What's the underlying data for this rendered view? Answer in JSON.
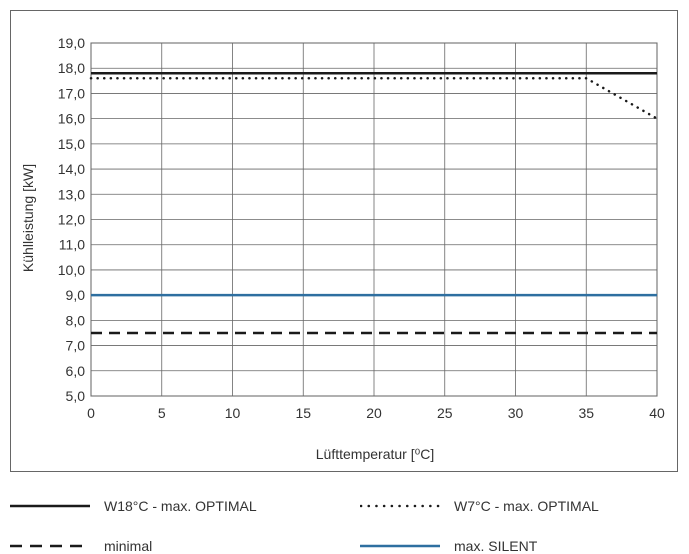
{
  "chart_data": {
    "type": "line",
    "xlabel": "Lüfttemperatur [⁰C]",
    "ylabel": "Kühlleistung [kW]",
    "xlim": [
      0,
      40
    ],
    "ylim": [
      5.0,
      19.0
    ],
    "x_ticks": [
      0,
      5,
      10,
      15,
      20,
      25,
      30,
      35,
      40
    ],
    "x_tick_labels": [
      "0",
      "5",
      "10",
      "15",
      "20",
      "25",
      "30",
      "35",
      "40"
    ],
    "y_ticks": [
      5,
      6,
      7,
      8,
      9,
      10,
      11,
      12,
      13,
      14,
      15,
      16,
      17,
      18,
      19
    ],
    "y_tick_labels": [
      "5,0",
      "6,0",
      "7,0",
      "8,0",
      "9,0",
      "10,0",
      "11,0",
      "12,0",
      "13,0",
      "14,0",
      "15,0",
      "16,0",
      "17,0",
      "18,0",
      "19,0"
    ],
    "grid": true,
    "series": [
      {
        "name": "W18°C - max. OPTIMAL",
        "style": "solid",
        "color": "#1a1a1a",
        "x": [
          0,
          40
        ],
        "y": [
          17.8,
          17.8
        ]
      },
      {
        "name": "W7°C -  max. OPTIMAL",
        "style": "dotted",
        "color": "#1a1a1a",
        "x": [
          0,
          35,
          40
        ],
        "y": [
          17.6,
          17.6,
          16.0
        ]
      },
      {
        "name": "minimal",
        "style": "dashed",
        "color": "#1a1a1a",
        "x": [
          0,
          40
        ],
        "y": [
          7.5,
          7.5
        ]
      },
      {
        "name": "max. SILENT",
        "style": "solid",
        "color": "#2e6fa0",
        "x": [
          0,
          40
        ],
        "y": [
          9.0,
          9.0
        ]
      }
    ]
  }
}
